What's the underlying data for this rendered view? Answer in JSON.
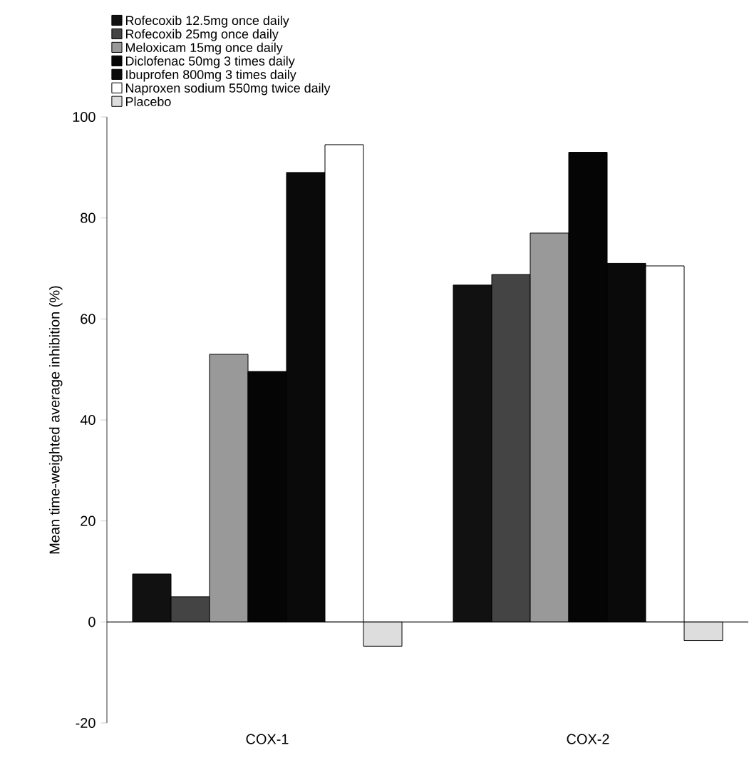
{
  "chart_data": {
    "type": "bar",
    "ylabel": "Mean time-weighted average inhibition (%)",
    "categories": [
      "COX-1",
      "COX-2"
    ],
    "series": [
      {
        "name": "Rofecoxib 12.5mg once daily",
        "color": "#111111",
        "values": [
          9.5,
          66.7
        ]
      },
      {
        "name": "Rofecoxib 25mg once daily",
        "color": "#444444",
        "values": [
          5,
          68.8
        ]
      },
      {
        "name": "Meloxicam 15mg once daily",
        "color": "#999999",
        "values": [
          53,
          77
        ]
      },
      {
        "name": "Diclofenac 50mg 3 times daily",
        "color": "#050505",
        "values": [
          49.6,
          93
        ]
      },
      {
        "name": "Ibuprofen 800mg 3 times daily",
        "color": "#0a0a0a",
        "values": [
          89,
          71
        ]
      },
      {
        "name": "Naproxen sodium 550mg twice daily",
        "color": "#ffffff",
        "values": [
          94.5,
          70.5
        ]
      },
      {
        "name": "Placebo",
        "color": "#dddddd",
        "values": [
          -4.8,
          -3.7
        ]
      }
    ],
    "ylim": [
      -20,
      100
    ],
    "yticks": [
      -20,
      0,
      20,
      40,
      60,
      80,
      100
    ],
    "legend": "top left"
  }
}
